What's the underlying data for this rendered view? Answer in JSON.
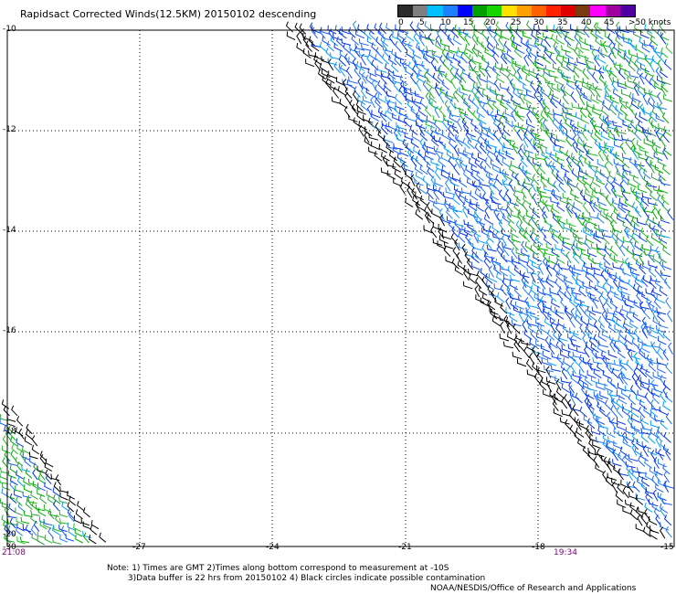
{
  "title": "Rapidsact Corrected Winds(12.5KM) 20150102 descending",
  "legend": {
    "unit": ">50 knots",
    "labels": [
      "0",
      "5",
      "10",
      "15",
      "20",
      "25",
      "30",
      "35",
      "40",
      "45"
    ],
    "colors": [
      "#2b2b2b",
      "#7f7f7f",
      "#00bfff",
      "#1e7fff",
      "#0000ff",
      "#00a000",
      "#16d400",
      "#ffe000",
      "#ffa000",
      "#ff6000",
      "#ff2000",
      "#e00000",
      "#7a3a10",
      "#ff00ff",
      "#a000a0",
      "#5000a0"
    ]
  },
  "axes": {
    "y_labels": [
      "-10",
      "-12",
      "-14",
      "-16",
      "-18",
      "-20"
    ],
    "x_labels": [
      "-30",
      "-27",
      "-24",
      "-21",
      "-18",
      "-15"
    ]
  },
  "times": {
    "left": "21:08",
    "right": "19:34"
  },
  "note": "Note: 1) Times are GMT 2)Times along bottom correspond to measurement at -10S\n        3)Data buffer is 22 hrs from 20150102 4) Black circles indicate possible contamination",
  "credit": "NOAA/NESDIS/Office of Research and Applications"
}
